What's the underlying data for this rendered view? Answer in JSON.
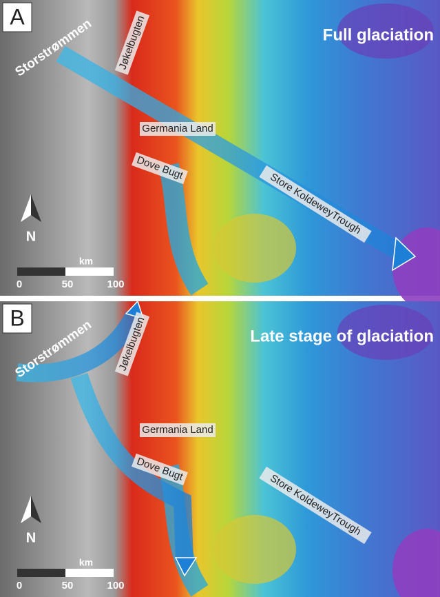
{
  "panels": [
    {
      "label": "A",
      "title": "Full glaciation",
      "ice_stream": "Storstrømmen",
      "fjord": "Jøkelbugten",
      "land": "Germania Land",
      "bay": "Dove Bugt",
      "trough": "Store KoldeweyTrough",
      "north": "N",
      "scale": {
        "unit": "km",
        "ticks": [
          "0",
          "50",
          "100"
        ]
      }
    },
    {
      "label": "B",
      "title": "Late stage of glaciation",
      "ice_stream": "Storstrømmen",
      "fjord": "Jøkelbugten",
      "land": "Germania Land",
      "bay": "Dove Bugt",
      "trough": "Store KoldeweyTrough",
      "north": "N",
      "scale": {
        "unit": "km",
        "ticks": [
          "0",
          "50",
          "100"
        ]
      }
    }
  ]
}
